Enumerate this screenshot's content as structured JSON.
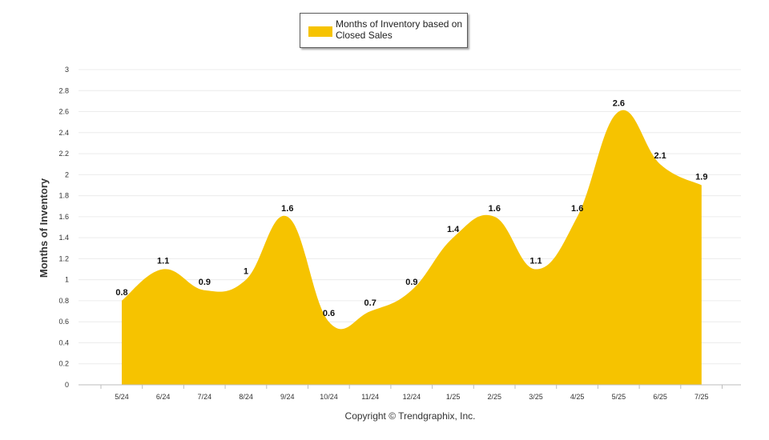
{
  "chart_data": {
    "type": "area",
    "categories": [
      "5/24",
      "6/24",
      "7/24",
      "8/24",
      "9/24",
      "10/24",
      "11/24",
      "12/24",
      "1/25",
      "2/25",
      "3/25",
      "4/25",
      "5/25",
      "6/25",
      "7/25"
    ],
    "series": [
      {
        "name": "Months of Inventory based on Closed Sales",
        "values": [
          0.8,
          1.1,
          0.9,
          1,
          1.6,
          0.6,
          0.7,
          0.9,
          1.4,
          1.6,
          1.1,
          1.6,
          2.6,
          2.1,
          1.9
        ],
        "labels": [
          "0.8",
          "1.1",
          "0.9",
          "1",
          "1.6",
          "0.6",
          "0.7",
          "0.9",
          "1.4",
          "1.6",
          "1.1",
          "1.6",
          "2.6",
          "2.1",
          "1.9"
        ]
      }
    ],
    "ylabel": "Months of Inventory",
    "ylim": [
      0,
      3
    ],
    "yticks": [
      "0",
      "0.2",
      "0.4",
      "0.6",
      "0.8",
      "1",
      "1.2",
      "1.4",
      "1.6",
      "1.8",
      "2",
      "2.2",
      "2.4",
      "2.6",
      "2.8",
      "3"
    ],
    "grid": true,
    "legend_position": "top-center",
    "fill_color": "#F6C300"
  },
  "footer": {
    "copyright": "Copyright © Trendgraphix, Inc."
  }
}
